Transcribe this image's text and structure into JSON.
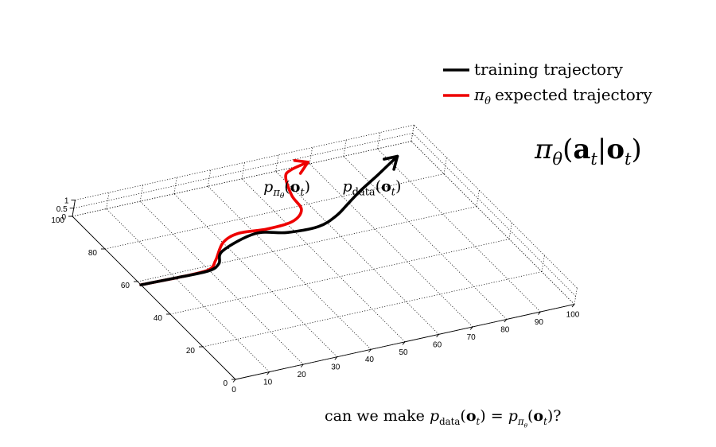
{
  "chart_data": {
    "type": "line",
    "title": "",
    "axes": {
      "x": {
        "range": [
          0,
          100
        ],
        "ticks": [
          0,
          10,
          20,
          30,
          40,
          50,
          60,
          70,
          80,
          90,
          100
        ]
      },
      "y": {
        "range": [
          0,
          100
        ],
        "ticks": [
          0,
          20,
          40,
          60,
          80,
          100
        ]
      },
      "z": {
        "range": [
          0,
          1
        ],
        "ticks": [
          "0",
          "0.5",
          "1"
        ]
      }
    },
    "grid": true,
    "legend_position": "top-right",
    "legend": [
      {
        "label": "training trajectory",
        "color": "#000000"
      },
      {
        "label": "expected trajectory",
        "prefix_symbol": "π",
        "prefix_sub": "θ",
        "color": "#ee0000"
      }
    ],
    "series": [
      {
        "name": "training trajectory",
        "color": "#000000",
        "x": [
          0,
          12,
          20,
          24,
          28,
          40,
          48,
          57,
          64,
          70,
          76,
          84,
          93
        ],
        "y": [
          58,
          57.5,
          57.5,
          60,
          66,
          71,
          68,
          67.5,
          71,
          76,
          81,
          87,
          94
        ],
        "annotation": {
          "base": "p",
          "sub": "data",
          "arg": "o",
          "argsub": "t"
        }
      },
      {
        "name": "expected trajectory",
        "color": "#ee0000",
        "x": [
          0,
          12,
          20,
          24,
          30,
          36,
          44,
          52,
          57,
          58,
          61,
          64,
          70
        ],
        "y": [
          58,
          57.5,
          58,
          62,
          70,
          73,
          72,
          73,
          78,
          86,
          96,
          99,
          101
        ],
        "annotation": {
          "base": "p",
          "sub": "π",
          "subsub": "θ",
          "arg": "o",
          "argsub": "t"
        }
      }
    ],
    "formula": {
      "symbol": "π",
      "sub": "θ",
      "open": "(",
      "a": "a",
      "asub": "t",
      "bar": "|",
      "o": "o",
      "osub": "t",
      "close": ")"
    },
    "question": {
      "prefix": "can we make",
      "p": "p",
      "psub": "data",
      "o": "o",
      "osub": "t",
      "eq": "=",
      "psub2": "π",
      "psub2sub": "θ",
      "suffix": "?"
    }
  }
}
